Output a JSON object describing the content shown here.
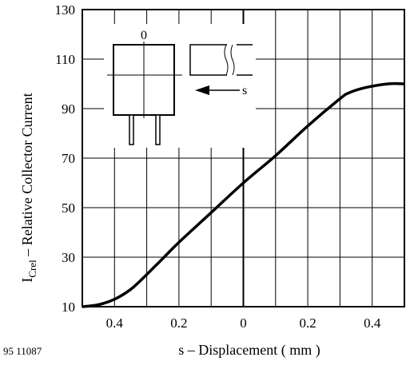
{
  "figure_id": "95 11087",
  "chart_data": {
    "type": "line",
    "title": "",
    "xlabel": "s – Displacement ( mm )",
    "ylabel_main": "I",
    "ylabel_sub": "Crel",
    "ylabel_rest": " – Relative Collector Current",
    "xlim": [
      -0.5,
      0.5
    ],
    "ylim": [
      10,
      130
    ],
    "grid": true,
    "x_ticks": [
      {
        "value": -0.4,
        "label": "0.4"
      },
      {
        "value": -0.2,
        "label": "0.2"
      },
      {
        "value": 0,
        "label": "0"
      },
      {
        "value": 0.2,
        "label": "0.2"
      },
      {
        "value": 0.4,
        "label": "0.4"
      }
    ],
    "y_ticks": [
      {
        "value": 10,
        "label": "10"
      },
      {
        "value": 30,
        "label": "30"
      },
      {
        "value": 50,
        "label": "50"
      },
      {
        "value": 70,
        "label": "70"
      },
      {
        "value": 90,
        "label": "90"
      },
      {
        "value": 110,
        "label": "110"
      },
      {
        "value": 130,
        "label": "130"
      }
    ],
    "series": [
      {
        "x": [
          -0.5,
          -0.45,
          -0.4,
          -0.35,
          -0.3,
          -0.25,
          -0.2,
          -0.1,
          0,
          0.1,
          0.2,
          0.3,
          0.33,
          0.38,
          0.45,
          0.5
        ],
        "y": [
          10,
          10.8,
          13,
          17,
          23,
          29.5,
          36,
          48,
          60,
          71,
          83,
          94,
          96.5,
          98.5,
          100,
          100
        ]
      }
    ],
    "inset": {
      "zero_label": "0",
      "s_label": "s"
    }
  }
}
